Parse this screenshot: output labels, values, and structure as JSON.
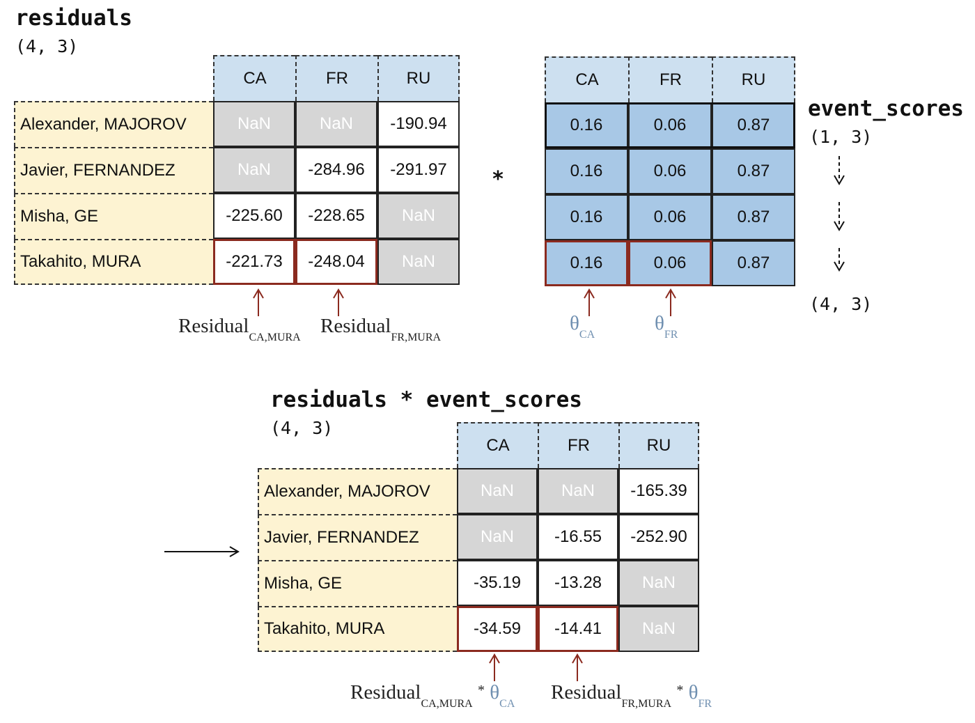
{
  "residuals": {
    "title": "residuals",
    "shape": "(4, 3)",
    "columns": [
      "CA",
      "FR",
      "RU"
    ],
    "rows": [
      {
        "name": "Alexander, MAJOROV",
        "values": [
          "NaN",
          "NaN",
          "-190.94"
        ]
      },
      {
        "name": "Javier, FERNANDEZ",
        "values": [
          "NaN",
          "-284.96",
          "-291.97"
        ]
      },
      {
        "name": "Misha, GE",
        "values": [
          "-225.60",
          "-228.65",
          "NaN"
        ]
      },
      {
        "name": "Takahito, MURA",
        "values": [
          "-221.73",
          "-248.04",
          "NaN"
        ]
      }
    ]
  },
  "operator": "*",
  "event_scores": {
    "title": "event_scores",
    "shape_before": "(1, 3)",
    "shape_after": "(4, 3)",
    "columns": [
      "CA",
      "FR",
      "RU"
    ],
    "rows": [
      [
        "0.16",
        "0.06",
        "0.87"
      ],
      [
        "0.16",
        "0.06",
        "0.87"
      ],
      [
        "0.16",
        "0.06",
        "0.87"
      ],
      [
        "0.16",
        "0.06",
        "0.87"
      ]
    ]
  },
  "annotations_top": {
    "res_ca": {
      "base": "Residual",
      "sub": "CA,MURA"
    },
    "res_fr": {
      "base": "Residual",
      "sub": "FR,MURA"
    },
    "theta_ca": {
      "base": "θ",
      "sub": "CA"
    },
    "theta_fr": {
      "base": "θ",
      "sub": "FR"
    }
  },
  "result": {
    "title": "residuals * event_scores",
    "shape": "(4, 3)",
    "columns": [
      "CA",
      "FR",
      "RU"
    ],
    "rows": [
      {
        "name": "Alexander, MAJOROV",
        "values": [
          "NaN",
          "NaN",
          "-165.39"
        ]
      },
      {
        "name": "Javier, FERNANDEZ",
        "values": [
          "NaN",
          "-16.55",
          "-252.90"
        ]
      },
      {
        "name": "Misha, GE",
        "values": [
          "-35.19",
          "-13.28",
          "NaN"
        ]
      },
      {
        "name": "Takahito, MURA",
        "values": [
          "-34.59",
          "-14.41",
          "NaN"
        ]
      }
    ]
  },
  "annotations_bottom": {
    "ca": {
      "base": "Residual",
      "sub": "CA,MURA",
      "op": "*",
      "theta": "θ",
      "theta_sub": "CA"
    },
    "fr": {
      "base": "Residual",
      "sub": "FR,MURA",
      "op": "*",
      "theta": "θ",
      "theta_sub": "FR"
    }
  },
  "colors": {
    "header_bg": "#cde0f0",
    "row_label_bg": "#fdf3d2",
    "nan_bg": "#d6d6d6",
    "score_bg": "#a8c8e6",
    "highlight": "#8b2a1f",
    "theta": "#6f8fb0"
  }
}
